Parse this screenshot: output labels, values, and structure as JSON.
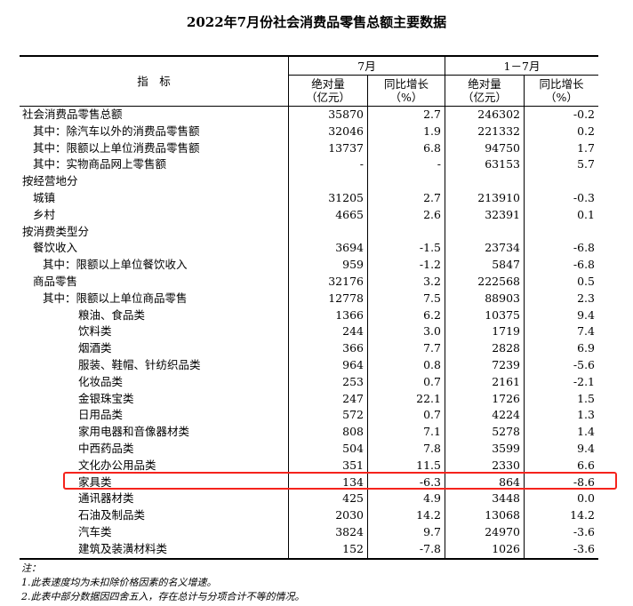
{
  "title": "2022年7月份社会消费品零售总额主要数据",
  "header": {
    "indicator": "指　标",
    "month": "7月",
    "ytd": "1－7月",
    "abs": "绝对量",
    "abs_unit": "（亿元）",
    "yoy": "同比增长",
    "yoy_unit": "（%）"
  },
  "rows": [
    {
      "label": "社会消费品零售总额",
      "level": 0,
      "v": [
        "35870",
        "2.7",
        "246302",
        "-0.2"
      ]
    },
    {
      "label": "其中：除汽车以外的消费品零售额",
      "level": 1,
      "v": [
        "32046",
        "1.9",
        "221332",
        "0.2"
      ]
    },
    {
      "label": "其中：限额以上单位消费品零售额",
      "level": 1,
      "v": [
        "13737",
        "6.8",
        "94750",
        "1.7"
      ]
    },
    {
      "label": "其中：实物商品网上零售额",
      "level": 1,
      "v": [
        "-",
        "-",
        "63153",
        "5.7"
      ]
    },
    {
      "label": "按经营地分",
      "level": 0,
      "v": [
        "",
        "",
        "",
        ""
      ]
    },
    {
      "label": "城镇",
      "level": 1,
      "v": [
        "31205",
        "2.7",
        "213910",
        "-0.3"
      ]
    },
    {
      "label": "乡村",
      "level": 1,
      "v": [
        "4665",
        "2.6",
        "32391",
        "0.1"
      ]
    },
    {
      "label": "按消费类型分",
      "level": 0,
      "v": [
        "",
        "",
        "",
        ""
      ]
    },
    {
      "label": "餐饮收入",
      "level": 1,
      "v": [
        "3694",
        "-1.5",
        "23734",
        "-6.8"
      ]
    },
    {
      "label": "其中：限额以上单位餐饮收入",
      "level": 2,
      "v": [
        "959",
        "-1.2",
        "5847",
        "-6.8"
      ]
    },
    {
      "label": "商品零售",
      "level": 1,
      "v": [
        "32176",
        "3.2",
        "222568",
        "0.5"
      ]
    },
    {
      "label": "其中：限额以上单位商品零售",
      "level": 2,
      "v": [
        "12778",
        "7.5",
        "88903",
        "2.3"
      ]
    },
    {
      "label": "粮油、食品类",
      "level": 3,
      "v": [
        "1366",
        "6.2",
        "10375",
        "9.4"
      ]
    },
    {
      "label": "饮料类",
      "level": 3,
      "v": [
        "244",
        "3.0",
        "1719",
        "7.4"
      ]
    },
    {
      "label": "烟酒类",
      "level": 3,
      "v": [
        "366",
        "7.7",
        "2828",
        "6.9"
      ]
    },
    {
      "label": "服装、鞋帽、针纺织品类",
      "level": 3,
      "v": [
        "964",
        "0.8",
        "7239",
        "-5.6"
      ]
    },
    {
      "label": "化妆品类",
      "level": 3,
      "v": [
        "253",
        "0.7",
        "2161",
        "-2.1"
      ]
    },
    {
      "label": "金银珠宝类",
      "level": 3,
      "v": [
        "247",
        "22.1",
        "1726",
        "1.5"
      ]
    },
    {
      "label": "日用品类",
      "level": 3,
      "v": [
        "572",
        "0.7",
        "4224",
        "1.3"
      ]
    },
    {
      "label": "家用电器和音像器材类",
      "level": 3,
      "v": [
        "808",
        "7.1",
        "5278",
        "1.4"
      ]
    },
    {
      "label": "中西药品类",
      "level": 3,
      "v": [
        "504",
        "7.8",
        "3599",
        "9.4"
      ]
    },
    {
      "label": "文化办公用品类",
      "level": 3,
      "v": [
        "351",
        "11.5",
        "2330",
        "6.6"
      ]
    },
    {
      "label": "家具类",
      "level": 3,
      "v": [
        "134",
        "-6.3",
        "864",
        "-8.6"
      ],
      "highlighted": true
    },
    {
      "label": "通讯器材类",
      "level": 3,
      "v": [
        "425",
        "4.9",
        "3448",
        "0.0"
      ]
    },
    {
      "label": "石油及制品类",
      "level": 3,
      "v": [
        "2030",
        "14.2",
        "13068",
        "14.2"
      ]
    },
    {
      "label": "汽车类",
      "level": 3,
      "v": [
        "3824",
        "9.7",
        "24970",
        "-3.6"
      ]
    },
    {
      "label": "建筑及装潢材料类",
      "level": 3,
      "v": [
        "152",
        "-7.8",
        "1026",
        "-3.6"
      ]
    }
  ],
  "highlight_color": "#f5231c",
  "notes": [
    "注：",
    "1.此表速度均为未扣除价格因素的名义增速。",
    "2.此表中部分数据因四舍五入，存在总计与分项合计不等的情况。"
  ]
}
